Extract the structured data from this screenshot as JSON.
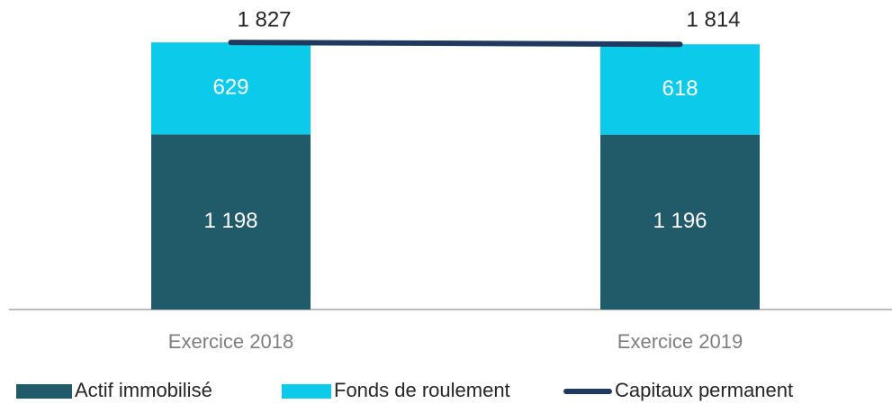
{
  "chart_data": {
    "type": "bar",
    "categories": [
      "Exercice 2018",
      "Exercice 2019"
    ],
    "ylim": [
      0,
      2000
    ],
    "legend": "bottom",
    "series": [
      {
        "name": "Actif immobilisé",
        "color": "#215a68",
        "type": "bar",
        "values": [
          1198,
          1196
        ],
        "value_labels": [
          "1 198",
          "1 196"
        ]
      },
      {
        "name": "Fonds de roulement",
        "color": "#0ccbea",
        "type": "bar",
        "values": [
          629,
          618
        ],
        "value_labels": [
          "629",
          "618"
        ]
      },
      {
        "name": "Capitaux permanent",
        "color": "#1f3a5e",
        "type": "line",
        "values": [
          1827,
          1814
        ],
        "value_labels": [
          "1 827",
          "1 814"
        ]
      }
    ]
  }
}
